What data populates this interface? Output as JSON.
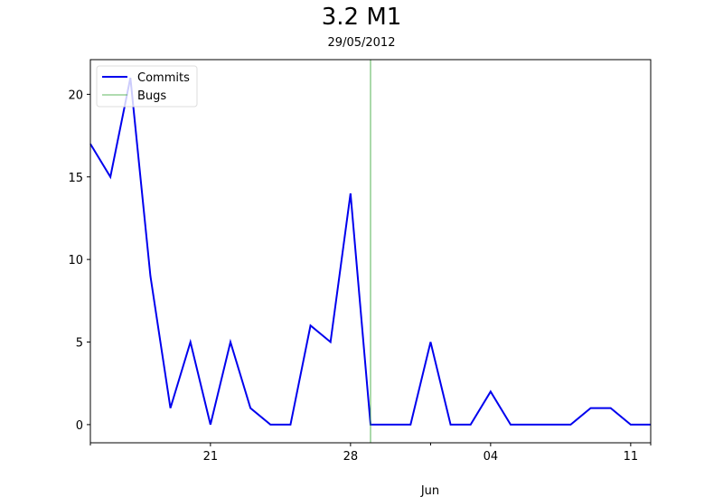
{
  "chart_data": {
    "type": "line",
    "title": "3.2 M1",
    "subtitle": "29/05/2012",
    "xlabel": "Jun",
    "ylabel": "",
    "x_start": "2012-05-15",
    "x_end": "2012-06-12",
    "ylim": [
      -1.1,
      22.1
    ],
    "y_ticks": [
      0,
      5,
      10,
      15,
      20
    ],
    "x_ticks": [
      {
        "date": "2012-05-21",
        "label": "21"
      },
      {
        "date": "2012-05-28",
        "label": "28"
      },
      {
        "date": "2012-06-04",
        "label": "04"
      },
      {
        "date": "2012-06-11",
        "label": "11"
      }
    ],
    "x_minor_ticks": [
      "2012-05-15",
      "2012-06-01",
      "2012-06-12"
    ],
    "legend_position": "top-left",
    "grid": false,
    "series": [
      {
        "name": "Commits",
        "color": "#0000ee",
        "x": [
          "2012-05-15",
          "2012-05-16",
          "2012-05-17",
          "2012-05-18",
          "2012-05-19",
          "2012-05-20",
          "2012-05-21",
          "2012-05-22",
          "2012-05-23",
          "2012-05-24",
          "2012-05-25",
          "2012-05-26",
          "2012-05-27",
          "2012-05-28",
          "2012-05-29",
          "2012-05-30",
          "2012-05-31",
          "2012-06-01",
          "2012-06-02",
          "2012-06-03",
          "2012-06-04",
          "2012-06-05",
          "2012-06-06",
          "2012-06-07",
          "2012-06-08",
          "2012-06-09",
          "2012-06-10",
          "2012-06-11",
          "2012-06-12"
        ],
        "values": [
          17,
          15,
          21,
          9,
          1,
          5,
          0,
          5,
          1,
          0,
          0,
          6,
          5,
          14,
          0,
          0,
          0,
          5,
          0,
          0,
          2,
          0,
          0,
          0,
          0,
          1,
          1,
          0,
          0
        ]
      },
      {
        "name": "Bugs",
        "color": "#2ca02c",
        "type": "vline",
        "x": [
          "2012-05-29"
        ]
      }
    ]
  }
}
